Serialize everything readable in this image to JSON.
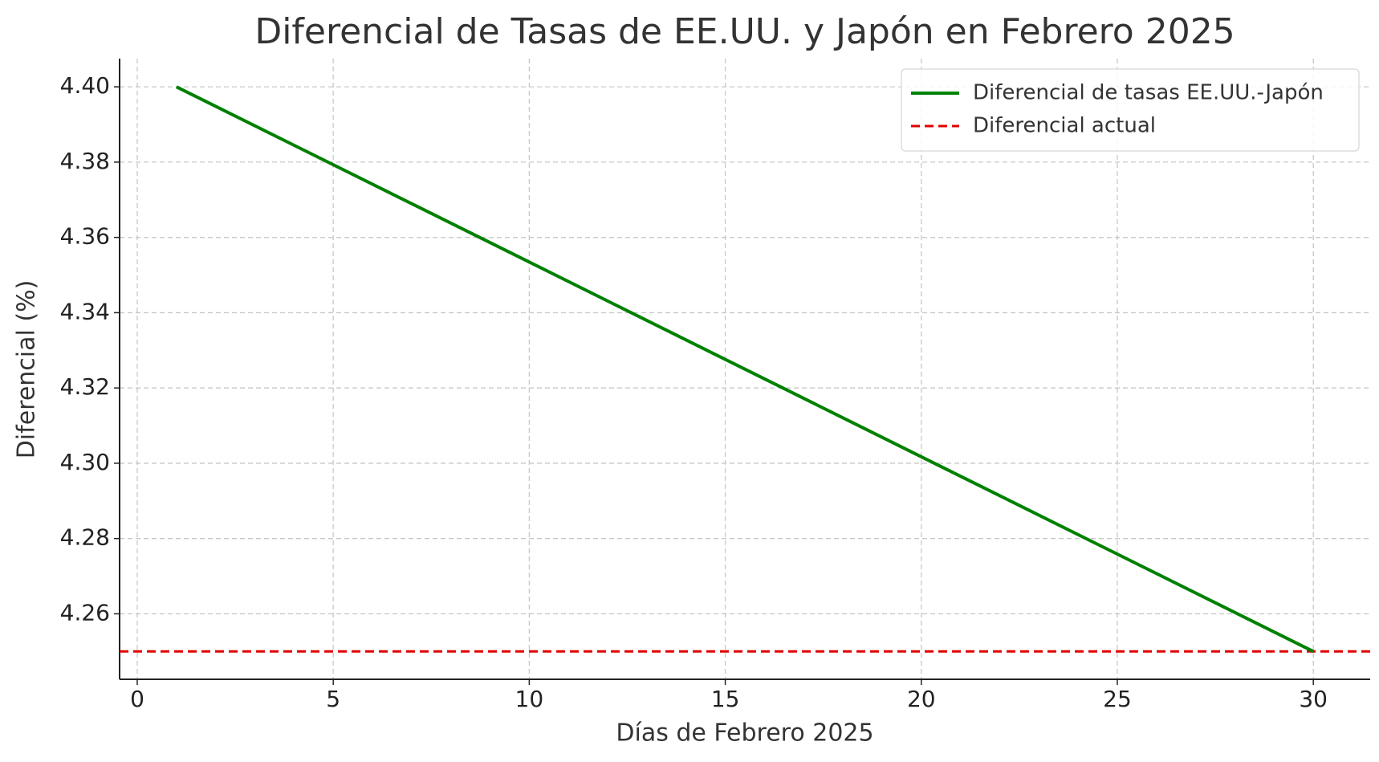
{
  "chart_data": {
    "type": "line",
    "title": "Diferencial de Tasas de EE.UU. y Japón en Febrero 2025",
    "x_label": "Días de Febrero 2025",
    "y_label": "Diferencial (%)",
    "x": [
      1,
      30
    ],
    "series": [
      {
        "name": "Diferencial de tasas EE.UU.-Japón",
        "color": "#008000",
        "values": [
          4.4,
          4.25
        ]
      }
    ],
    "reference_lines": [
      {
        "name": "Diferencial actual",
        "color": "#e00000",
        "value": 4.25,
        "dashed": true
      }
    ],
    "xlim": [
      -0.45,
      31.45
    ],
    "ylim": [
      4.2426,
      4.4075
    ],
    "xticks": [
      0,
      5,
      10,
      15,
      20,
      25,
      30
    ],
    "yticks": [
      {
        "value": 4.26,
        "label": "4.26"
      },
      {
        "value": 4.28,
        "label": "4.28"
      },
      {
        "value": 4.3,
        "label": "4.30"
      },
      {
        "value": 4.32,
        "label": "4.32"
      },
      {
        "value": 4.34,
        "label": "4.34"
      },
      {
        "value": 4.36,
        "label": "4.36"
      },
      {
        "value": 4.38,
        "label": "4.38"
      },
      {
        "value": 4.4,
        "label": "4.40"
      }
    ],
    "grid": true,
    "legend": "upper right"
  }
}
